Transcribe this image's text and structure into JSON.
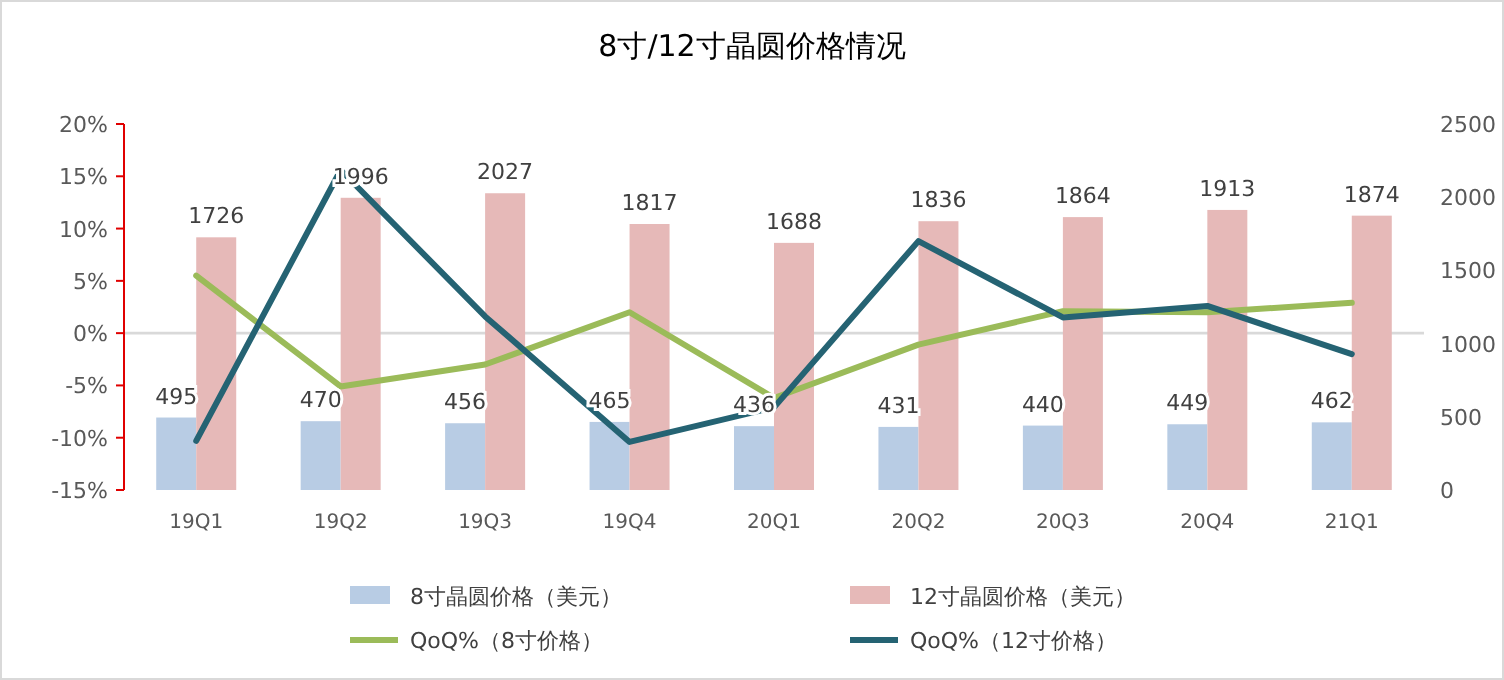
{
  "chart_data": {
    "type": "bar",
    "title": "8寸/12寸晶圆价格情况",
    "categories": [
      "19Q1",
      "19Q2",
      "19Q3",
      "19Q4",
      "20Q1",
      "20Q2",
      "20Q3",
      "20Q4",
      "21Q1"
    ],
    "series": [
      {
        "name": "8寸晶圆价格（美元）",
        "axis": "y2",
        "color": "#b8cce4",
        "values": [
          495,
          470,
          456,
          465,
          436,
          431,
          440,
          449,
          462
        ],
        "value_labels": [
          "495",
          "470",
          "456",
          "465",
          "436",
          "431",
          "440",
          "449",
          "462"
        ]
      },
      {
        "name": "12寸晶圆价格（美元）",
        "axis": "y2",
        "color": "#e6b9b8",
        "values": [
          1726,
          1996,
          2027,
          1817,
          1688,
          1836,
          1864,
          1913,
          1874
        ],
        "value_labels": [
          "1726",
          "1996",
          "2027",
          "1817",
          "1688",
          "1836",
          "1864",
          "1913",
          "1874"
        ]
      },
      {
        "name": "QoQ%（8寸价格）",
        "type": "line",
        "axis": "y",
        "color": "#9bbb59",
        "values": [
          5.5,
          -5.1,
          -3.0,
          2.0,
          -6.2,
          -1.1,
          2.1,
          2.0,
          2.9
        ]
      },
      {
        "name": "QoQ%（12寸价格）",
        "type": "line",
        "axis": "y",
        "color": "#256373",
        "values": [
          -10.3,
          15.6,
          1.6,
          -10.4,
          -7.1,
          8.8,
          1.5,
          2.6,
          -2.0
        ]
      }
    ],
    "ylim": [
      -15,
      20
    ],
    "yticks": [
      {
        "value": -15,
        "label": "-15%"
      },
      {
        "value": -10,
        "label": "-10%"
      },
      {
        "value": -5,
        "label": "-5%"
      },
      {
        "value": 0,
        "label": "0%"
      },
      {
        "value": 5,
        "label": "5%"
      },
      {
        "value": 10,
        "label": "10%"
      },
      {
        "value": 15,
        "label": "15%"
      },
      {
        "value": 20,
        "label": "20%"
      }
    ],
    "y2lim": [
      0,
      2500
    ],
    "y2ticks": [
      0,
      500,
      1000,
      1500,
      2000,
      2500
    ],
    "ref_lines": [
      {
        "axis": "y",
        "value": 0,
        "color": "#d9d9d9"
      }
    ],
    "grid": false,
    "legend": "bottom",
    "marker": "none"
  }
}
